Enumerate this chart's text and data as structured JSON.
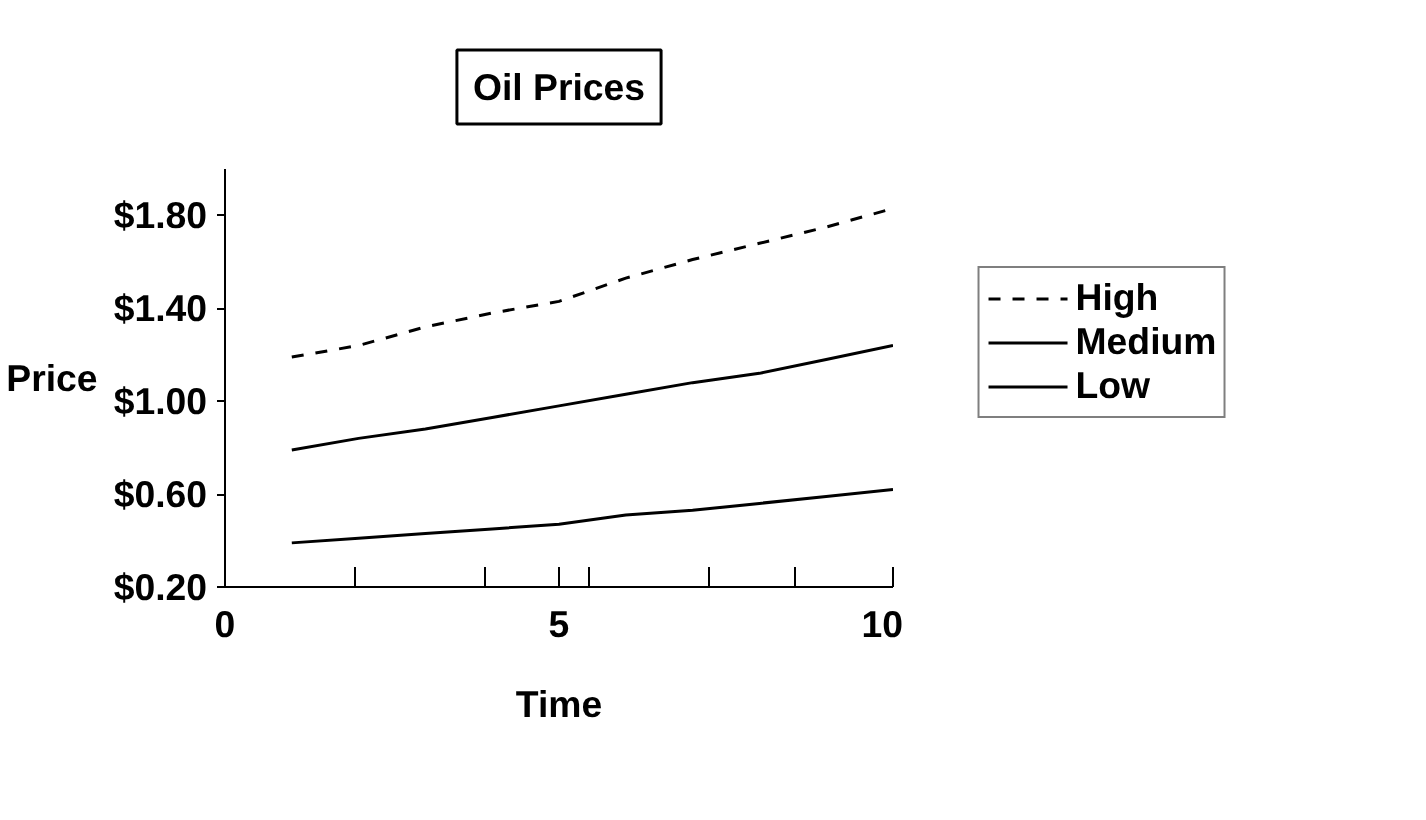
{
  "chart_data": {
    "type": "line",
    "title": "Oil Prices",
    "xlabel": "Time",
    "ylabel": "Price",
    "x": [
      1,
      2,
      3,
      4,
      5,
      6,
      7,
      8,
      9,
      10
    ],
    "series": [
      {
        "name": "High",
        "color": "#000000",
        "line_style": "dashed",
        "values": [
          1.19,
          1.24,
          1.32,
          1.38,
          1.43,
          1.53,
          1.61,
          1.68,
          1.75,
          1.83
        ]
      },
      {
        "name": "Medium",
        "color": "#000000",
        "values": [
          0.79,
          0.84,
          0.88,
          0.93,
          0.98,
          1.03,
          1.08,
          1.12,
          1.18,
          1.24
        ]
      },
      {
        "name": "Low",
        "color": "#000000",
        "values": [
          0.39,
          0.41,
          0.43,
          0.45,
          0.47,
          0.51,
          0.53,
          0.56,
          0.59,
          0.62
        ]
      }
    ],
    "xlim": [
      0,
      10
    ],
    "ylim": [
      0.2,
      2.0
    ],
    "xticks": [
      0,
      {
        "value": 1.95,
        "label": null
      },
      {
        "value": 3.9,
        "label": null
      },
      5,
      {
        "value": 5.46,
        "label": null
      },
      {
        "value": 7.25,
        "label": null
      },
      {
        "value": 8.53,
        "label": null
      },
      10
    ],
    "yticks": [
      {
        "value": 0.2,
        "label": "$0.20"
      },
      {
        "value": 0.6,
        "label": "$0.60"
      },
      {
        "value": 1.0,
        "label": "$1.00"
      },
      {
        "value": 1.4,
        "label": "$1.40"
      },
      {
        "value": 1.8,
        "label": "$1.80"
      }
    ],
    "grid": false,
    "legend": "right",
    "line_style": "solid",
    "marker": "none"
  }
}
